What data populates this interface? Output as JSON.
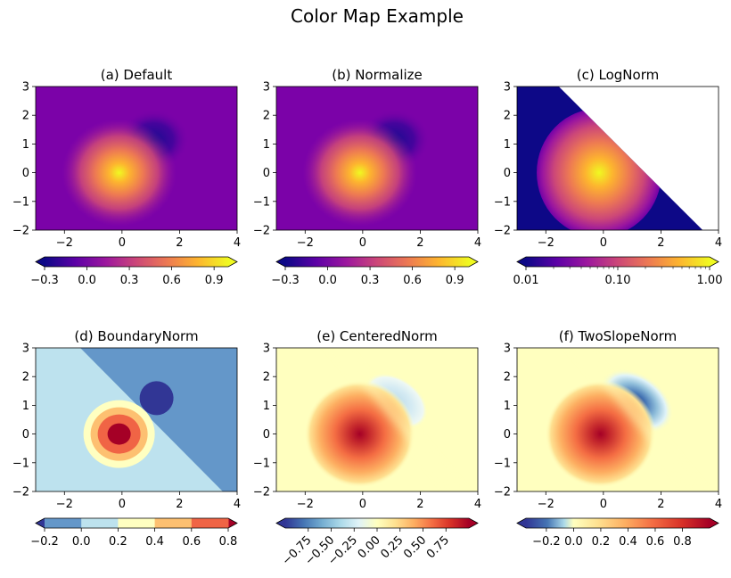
{
  "figure": {
    "title": "Color Map Example"
  },
  "colors": {
    "plasma": [
      "#0d0887",
      "#5c01a6",
      "#9c179e",
      "#cc4778",
      "#ed7953",
      "#fdb42f",
      "#f0f921"
    ],
    "rdylbu_r": [
      "#313695",
      "#4575b4",
      "#74add1",
      "#abd9e9",
      "#e0f3f8",
      "#ffffbf",
      "#fee090",
      "#fdae61",
      "#f46d43",
      "#d73027",
      "#a50026"
    ],
    "boundary_bins": [
      "#6497c9",
      "#bde2ee",
      "#ffffc1",
      "#fdc071",
      "#f06445"
    ],
    "boundary_under": "#313695",
    "boundary_over": "#a50026",
    "background_white": "#ffffff"
  },
  "chart_data": [
    {
      "id": "a",
      "type": "heatmap",
      "title": "(a) Default",
      "norm": "linear",
      "colormap": "plasma",
      "xlim": [
        -3,
        4
      ],
      "ylim": [
        -2,
        3
      ],
      "xticks": [
        "−2",
        "0",
        "2",
        "4"
      ],
      "yticks": [
        "3",
        "2",
        "1",
        "0",
        "−1",
        "−2"
      ],
      "colorbar": {
        "range": [
          -0.3,
          1.0
        ],
        "ticks": [
          "−0.3",
          "0.0",
          "0.3",
          "0.6",
          "0.9"
        ],
        "extend": "both"
      },
      "features": [
        {
          "label": "peak",
          "x": 0,
          "y": 0,
          "value": 1.0
        },
        {
          "label": "trough",
          "x": 1,
          "y": 1,
          "value": -0.3
        }
      ]
    },
    {
      "id": "b",
      "type": "heatmap",
      "title": "(b) Normalize",
      "norm": "linear",
      "colormap": "plasma",
      "xlim": [
        -3,
        4
      ],
      "ylim": [
        -2,
        3
      ],
      "xticks": [
        "−2",
        "0",
        "2",
        "4"
      ],
      "yticks": [
        "3",
        "2",
        "1",
        "0",
        "−1",
        "−2"
      ],
      "colorbar": {
        "range": [
          -0.3,
          1.0
        ],
        "ticks": [
          "−0.3",
          "0.0",
          "0.3",
          "0.6",
          "0.9"
        ],
        "extend": "both"
      },
      "features": [
        {
          "label": "peak",
          "x": 0,
          "y": 0,
          "value": 1.0
        },
        {
          "label": "trough",
          "x": 1,
          "y": 1,
          "value": -0.3
        }
      ]
    },
    {
      "id": "c",
      "type": "heatmap",
      "title": "(c) LogNorm",
      "norm": "log",
      "colormap": "plasma",
      "xlim": [
        -3,
        4
      ],
      "ylim": [
        -2,
        3
      ],
      "xticks": [
        "−2",
        "0",
        "2",
        "4"
      ],
      "yticks": [
        "3",
        "2",
        "1",
        "0",
        "−1",
        "−2"
      ],
      "colorbar": {
        "range": [
          0.01,
          1.0
        ],
        "ticks": [
          "0.01",
          "0.10",
          "1.00"
        ],
        "extend": "both",
        "scale": "log"
      },
      "features": [
        {
          "label": "peak",
          "x": 0,
          "y": 0,
          "value": 1.0
        }
      ]
    },
    {
      "id": "d",
      "type": "heatmap",
      "title": "(d) BoundaryNorm",
      "norm": "boundary",
      "colormap": "RdYlBu_r",
      "xlim": [
        -3,
        4
      ],
      "ylim": [
        -2,
        3
      ],
      "xticks": [
        "−2",
        "0",
        "2",
        "4"
      ],
      "yticks": [
        "3",
        "2",
        "1",
        "0",
        "−1",
        "−2"
      ],
      "colorbar": {
        "range": [
          -0.2,
          0.8
        ],
        "ticks": [
          "−0.2",
          "0.0",
          "0.2",
          "0.4",
          "0.6",
          "0.8"
        ],
        "boundaries": [
          -0.2,
          0.0,
          0.2,
          0.4,
          0.6,
          0.8
        ],
        "extend": "both"
      }
    },
    {
      "id": "e",
      "type": "heatmap",
      "title": "(e) CenteredNorm",
      "norm": "centered",
      "colormap": "RdYlBu_r",
      "xlim": [
        -3,
        4
      ],
      "ylim": [
        -2,
        3
      ],
      "xticks": [
        "−2",
        "0",
        "2",
        "4"
      ],
      "yticks": [
        "3",
        "2",
        "1",
        "0",
        "−1",
        "−2"
      ],
      "colorbar": {
        "range": [
          -1.0,
          1.0
        ],
        "ticks": [
          "−0.75",
          "−0.50",
          "−0.25",
          "0.00",
          "0.25",
          "0.50",
          "0.75"
        ],
        "extend": "both",
        "tick_rotation": "45"
      }
    },
    {
      "id": "f",
      "type": "heatmap",
      "title": "(f) TwoSlopeNorm",
      "norm": "two-slope",
      "colormap": "RdYlBu_r",
      "xlim": [
        -3,
        4
      ],
      "ylim": [
        -2,
        3
      ],
      "xticks": [
        "−2",
        "0",
        "2",
        "4"
      ],
      "yticks": [
        "3",
        "2",
        "1",
        "0",
        "−1",
        "−2"
      ],
      "colorbar": {
        "range": [
          -0.35,
          1.0
        ],
        "center": 0.0,
        "ticks": [
          "−0.2",
          "0.0",
          "0.2",
          "0.4",
          "0.6",
          "0.8"
        ],
        "extend": "both"
      }
    }
  ]
}
